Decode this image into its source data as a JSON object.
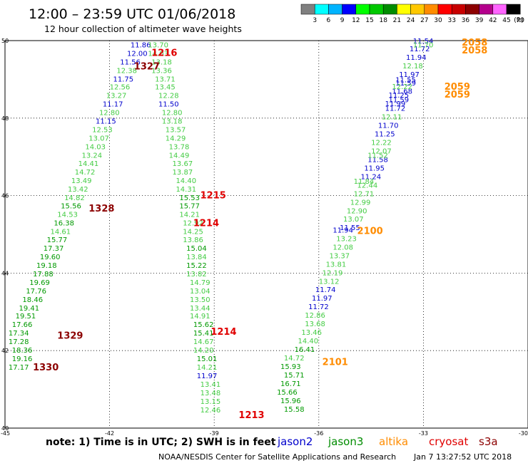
{
  "header": {
    "title": "12:00 – 23:59 UTC 01/06/2018",
    "subtitle": "12 hour collection of altimeter wave heights"
  },
  "colorbar": {
    "ticks": [
      "3",
      "6",
      "9",
      "12",
      "15",
      "18",
      "21",
      "24",
      "27",
      "30",
      "33",
      "36",
      "39",
      "42",
      "45",
      "70"
    ],
    "unit": "(ft)",
    "colors": [
      "#808080",
      "#00ffff",
      "#00b4ff",
      "#0000ff",
      "#00ff00",
      "#00c800",
      "#008c00",
      "#ffff00",
      "#ffc800",
      "#ff8c00",
      "#ff0000",
      "#c80000",
      "#8c0000",
      "#b4008c",
      "#ff64ff",
      "#000000"
    ]
  },
  "footer": {
    "note": "note: 1) Time is in UTC; 2) SWH is in feet",
    "legend": [
      {
        "name": "jason2",
        "color": "#0000cc"
      },
      {
        "name": "jason3",
        "color": "#008c00"
      },
      {
        "name": "altika",
        "color": "#ff8c00"
      },
      {
        "name": "cryosat",
        "color": "#e00000"
      },
      {
        "name": "s3a",
        "color": "#8c0000"
      }
    ],
    "credit": "NOAA/NESDIS Center for Satellite Applications and Research",
    "timestamp": "Jan  7 13:27:52 UTC 2018"
  },
  "chart_data": {
    "type": "scatter",
    "xlim": [
      -45,
      -30
    ],
    "ylim": [
      40,
      50
    ],
    "xticks": [
      -45,
      -42,
      -39,
      -36,
      -33,
      -30
    ],
    "xtick_labels": [
      "-45",
      "-42",
      "-39",
      "-36",
      "-33",
      "-30"
    ],
    "yticks": [
      40,
      42,
      44,
      46,
      48,
      50
    ],
    "ytick_labels": [
      "40",
      "42",
      "44",
      "46",
      "48",
      "50"
    ],
    "grid": true,
    "colors": {
      "lg": "#44cc44",
      "dg": "#009900",
      "bl": "#0000cc",
      "or": "#ff8c00",
      "rd": "#e00000",
      "dr": "#8c0000"
    },
    "points": [
      {
        "x": -41.4,
        "y": 49.9,
        "t": "11.86",
        "c": "bl"
      },
      {
        "x": -41.5,
        "y": 49.68,
        "t": "12.00",
        "c": "bl"
      },
      {
        "x": -41.7,
        "y": 49.46,
        "t": "11.56",
        "c": "bl"
      },
      {
        "x": -41.8,
        "y": 49.24,
        "t": "12.38",
        "c": "lg"
      },
      {
        "x": -41.9,
        "y": 49.02,
        "t": "11.75",
        "c": "bl"
      },
      {
        "x": -42.0,
        "y": 48.81,
        "t": "12.56",
        "c": "lg"
      },
      {
        "x": -42.1,
        "y": 48.59,
        "t": "13.27",
        "c": "lg"
      },
      {
        "x": -42.2,
        "y": 48.37,
        "t": "11.17",
        "c": "bl"
      },
      {
        "x": -42.3,
        "y": 48.15,
        "t": "12.80",
        "c": "lg"
      },
      {
        "x": -42.4,
        "y": 47.93,
        "t": "11.15",
        "c": "bl"
      },
      {
        "x": -42.5,
        "y": 47.71,
        "t": "12.53",
        "c": "lg"
      },
      {
        "x": -42.6,
        "y": 47.49,
        "t": "13.07",
        "c": "lg"
      },
      {
        "x": -42.7,
        "y": 47.27,
        "t": "14.03",
        "c": "lg"
      },
      {
        "x": -42.8,
        "y": 47.05,
        "t": "13.24",
        "c": "lg"
      },
      {
        "x": -42.9,
        "y": 46.84,
        "t": "14.41",
        "c": "lg"
      },
      {
        "x": -43.0,
        "y": 46.62,
        "t": "14.72",
        "c": "lg"
      },
      {
        "x": -43.1,
        "y": 46.4,
        "t": "13.49",
        "c": "lg"
      },
      {
        "x": -43.2,
        "y": 46.18,
        "t": "13.42",
        "c": "lg"
      },
      {
        "x": -43.3,
        "y": 45.96,
        "t": "14.82",
        "c": "lg"
      },
      {
        "x": -43.4,
        "y": 45.74,
        "t": "15.56",
        "c": "dg"
      },
      {
        "x": -43.5,
        "y": 45.52,
        "t": "14.53",
        "c": "lg"
      },
      {
        "x": -43.6,
        "y": 45.3,
        "t": "16.38",
        "c": "dg"
      },
      {
        "x": -43.7,
        "y": 45.08,
        "t": "14.61",
        "c": "lg"
      },
      {
        "x": -43.8,
        "y": 44.87,
        "t": "15.77",
        "c": "dg"
      },
      {
        "x": -43.9,
        "y": 44.65,
        "t": "17.37",
        "c": "dg"
      },
      {
        "x": -44.0,
        "y": 44.43,
        "t": "19.60",
        "c": "dg"
      },
      {
        "x": -44.1,
        "y": 44.21,
        "t": "19.18",
        "c": "dg"
      },
      {
        "x": -44.2,
        "y": 43.99,
        "t": "17.88",
        "c": "dg"
      },
      {
        "x": -44.3,
        "y": 43.77,
        "t": "19.69",
        "c": "dg"
      },
      {
        "x": -44.4,
        "y": 43.55,
        "t": "17.76",
        "c": "dg"
      },
      {
        "x": -44.5,
        "y": 43.33,
        "t": "18.46",
        "c": "dg"
      },
      {
        "x": -44.6,
        "y": 43.11,
        "t": "19.41",
        "c": "dg"
      },
      {
        "x": -44.7,
        "y": 42.9,
        "t": "19.51",
        "c": "dg"
      },
      {
        "x": -44.8,
        "y": 42.68,
        "t": "17.66",
        "c": "dg"
      },
      {
        "x": -44.9,
        "y": 42.46,
        "t": "17.34",
        "c": "dg"
      },
      {
        "x": -44.9,
        "y": 42.24,
        "t": "17.28",
        "c": "dg"
      },
      {
        "x": -44.8,
        "y": 42.02,
        "t": "18.36",
        "c": "dg"
      },
      {
        "x": -44.8,
        "y": 41.8,
        "t": "19.16",
        "c": "dg"
      },
      {
        "x": -44.9,
        "y": 41.58,
        "t": "17.17",
        "c": "dg"
      },
      {
        "x": -40.9,
        "y": 49.9,
        "t": "13.70",
        "c": "lg"
      },
      {
        "x": -40.9,
        "y": 49.68,
        "t": "14.03",
        "c": "lg"
      },
      {
        "x": -40.8,
        "y": 49.46,
        "t": "13.18",
        "c": "lg"
      },
      {
        "x": -40.8,
        "y": 49.24,
        "t": "13.36",
        "c": "lg"
      },
      {
        "x": -40.7,
        "y": 49.02,
        "t": "13.71",
        "c": "lg"
      },
      {
        "x": -40.7,
        "y": 48.81,
        "t": "13.45",
        "c": "lg"
      },
      {
        "x": -40.6,
        "y": 48.59,
        "t": "12.28",
        "c": "lg"
      },
      {
        "x": -40.6,
        "y": 48.37,
        "t": "11.50",
        "c": "bl"
      },
      {
        "x": -40.5,
        "y": 48.15,
        "t": "12.80",
        "c": "lg"
      },
      {
        "x": -40.5,
        "y": 47.93,
        "t": "13.18",
        "c": "lg"
      },
      {
        "x": -40.4,
        "y": 47.71,
        "t": "13.57",
        "c": "lg"
      },
      {
        "x": -40.4,
        "y": 47.49,
        "t": "14.29",
        "c": "lg"
      },
      {
        "x": -40.3,
        "y": 47.27,
        "t": "13.78",
        "c": "lg"
      },
      {
        "x": -40.3,
        "y": 47.05,
        "t": "14.49",
        "c": "lg"
      },
      {
        "x": -40.2,
        "y": 46.84,
        "t": "13.67",
        "c": "lg"
      },
      {
        "x": -40.2,
        "y": 46.62,
        "t": "13.87",
        "c": "lg"
      },
      {
        "x": -40.1,
        "y": 46.4,
        "t": "14.40",
        "c": "lg"
      },
      {
        "x": -40.1,
        "y": 46.18,
        "t": "14.31",
        "c": "lg"
      },
      {
        "x": -40.0,
        "y": 45.96,
        "t": "15.53",
        "c": "dg"
      },
      {
        "x": -40.0,
        "y": 45.74,
        "t": "15.77",
        "c": "dg"
      },
      {
        "x": -40.0,
        "y": 45.52,
        "t": "14.21",
        "c": "lg"
      },
      {
        "x": -39.9,
        "y": 45.3,
        "t": "12.92",
        "c": "lg"
      },
      {
        "x": -39.9,
        "y": 45.08,
        "t": "14.25",
        "c": "lg"
      },
      {
        "x": -39.9,
        "y": 44.87,
        "t": "13.86",
        "c": "lg"
      },
      {
        "x": -39.8,
        "y": 44.65,
        "t": "15.04",
        "c": "dg"
      },
      {
        "x": -39.8,
        "y": 44.43,
        "t": "13.84",
        "c": "lg"
      },
      {
        "x": -39.8,
        "y": 44.21,
        "t": "15.22",
        "c": "dg"
      },
      {
        "x": -39.8,
        "y": 43.99,
        "t": "13.82",
        "c": "lg"
      },
      {
        "x": -39.7,
        "y": 43.77,
        "t": "14.79",
        "c": "lg"
      },
      {
        "x": -39.7,
        "y": 43.55,
        "t": "13.04",
        "c": "lg"
      },
      {
        "x": -39.7,
        "y": 43.33,
        "t": "13.50",
        "c": "lg"
      },
      {
        "x": -39.7,
        "y": 43.11,
        "t": "13.44",
        "c": "lg"
      },
      {
        "x": -39.7,
        "y": 42.9,
        "t": "14.91",
        "c": "lg"
      },
      {
        "x": -39.6,
        "y": 42.68,
        "t": "15.62",
        "c": "dg"
      },
      {
        "x": -39.6,
        "y": 42.46,
        "t": "15.41",
        "c": "dg"
      },
      {
        "x": -39.6,
        "y": 42.24,
        "t": "14.67",
        "c": "lg"
      },
      {
        "x": -39.6,
        "y": 42.02,
        "t": "14.20",
        "c": "lg"
      },
      {
        "x": -39.5,
        "y": 41.8,
        "t": "15.01",
        "c": "dg"
      },
      {
        "x": -39.5,
        "y": 41.58,
        "t": "14.21",
        "c": "lg"
      },
      {
        "x": -39.5,
        "y": 41.36,
        "t": "11.97",
        "c": "bl"
      },
      {
        "x": -39.4,
        "y": 41.14,
        "t": "13.41",
        "c": "lg"
      },
      {
        "x": -39.4,
        "y": 40.92,
        "t": "13.48",
        "c": "lg"
      },
      {
        "x": -39.4,
        "y": 40.7,
        "t": "13.15",
        "c": "lg"
      },
      {
        "x": -39.4,
        "y": 40.48,
        "t": "12.46",
        "c": "lg"
      },
      {
        "x": -37.0,
        "y": 40.5,
        "t": "15.58",
        "c": "dg"
      },
      {
        "x": -37.1,
        "y": 40.72,
        "t": "15.96",
        "c": "dg"
      },
      {
        "x": -37.2,
        "y": 40.94,
        "t": "15.66",
        "c": "dg"
      },
      {
        "x": -37.1,
        "y": 41.16,
        "t": "16.71",
        "c": "dg"
      },
      {
        "x": -37.0,
        "y": 41.38,
        "t": "15.71",
        "c": "dg"
      },
      {
        "x": -37.1,
        "y": 41.6,
        "t": "15.93",
        "c": "dg"
      },
      {
        "x": -37.0,
        "y": 41.82,
        "t": "14.72",
        "c": "lg"
      },
      {
        "x": -36.7,
        "y": 42.04,
        "t": "16.41",
        "c": "dg"
      },
      {
        "x": -36.6,
        "y": 42.26,
        "t": "14.40",
        "c": "lg"
      },
      {
        "x": -36.5,
        "y": 42.48,
        "t": "13.46",
        "c": "lg"
      },
      {
        "x": -36.4,
        "y": 42.7,
        "t": "13.68",
        "c": "lg"
      },
      {
        "x": -36.4,
        "y": 42.92,
        "t": "12.86",
        "c": "lg"
      },
      {
        "x": -36.3,
        "y": 43.14,
        "t": "11.72",
        "c": "bl"
      },
      {
        "x": -36.2,
        "y": 43.36,
        "t": "11.97",
        "c": "bl"
      },
      {
        "x": -36.1,
        "y": 43.58,
        "t": "11.74",
        "c": "bl"
      },
      {
        "x": -36.0,
        "y": 43.8,
        "t": "13.12",
        "c": "lg"
      },
      {
        "x": -35.9,
        "y": 44.02,
        "t": "12.19",
        "c": "lg"
      },
      {
        "x": -35.8,
        "y": 44.24,
        "t": "13.81",
        "c": "lg"
      },
      {
        "x": -35.7,
        "y": 44.46,
        "t": "13.37",
        "c": "lg"
      },
      {
        "x": -35.6,
        "y": 44.68,
        "t": "12.08",
        "c": "lg"
      },
      {
        "x": -35.5,
        "y": 44.9,
        "t": "13.23",
        "c": "lg"
      },
      {
        "x": -35.6,
        "y": 45.12,
        "t": "11.94",
        "c": "bl"
      },
      {
        "x": -35.4,
        "y": 45.18,
        "t": "11.55",
        "c": "bl"
      },
      {
        "x": -35.3,
        "y": 45.4,
        "t": "13.07",
        "c": "lg"
      },
      {
        "x": -35.2,
        "y": 45.62,
        "t": "12.90",
        "c": "lg"
      },
      {
        "x": -35.1,
        "y": 45.84,
        "t": "12.99",
        "c": "lg"
      },
      {
        "x": -35.0,
        "y": 46.06,
        "t": "12.71",
        "c": "lg"
      },
      {
        "x": -34.9,
        "y": 46.28,
        "t": "12.44",
        "c": "lg"
      },
      {
        "x": -34.8,
        "y": 46.5,
        "t": "11.24",
        "c": "bl"
      },
      {
        "x": -34.7,
        "y": 46.72,
        "t": "11.95",
        "c": "bl"
      },
      {
        "x": -34.6,
        "y": 46.94,
        "t": "11.58",
        "c": "bl"
      },
      {
        "x": -34.5,
        "y": 47.16,
        "t": "12.07",
        "c": "lg"
      },
      {
        "x": -34.5,
        "y": 47.38,
        "t": "12.22",
        "c": "lg"
      },
      {
        "x": -34.4,
        "y": 47.6,
        "t": "11.25",
        "c": "bl"
      },
      {
        "x": -34.3,
        "y": 47.82,
        "t": "11.70",
        "c": "bl"
      },
      {
        "x": -34.2,
        "y": 48.04,
        "t": "12.11",
        "c": "lg"
      },
      {
        "x": -34.1,
        "y": 48.26,
        "t": "11.72",
        "c": "bl"
      },
      {
        "x": -34.0,
        "y": 48.48,
        "t": "11.59",
        "c": "bl"
      },
      {
        "x": -33.9,
        "y": 48.7,
        "t": "11.68",
        "c": "bl"
      },
      {
        "x": -33.8,
        "y": 48.92,
        "t": "11.59",
        "c": "bl"
      },
      {
        "x": -33.7,
        "y": 49.14,
        "t": "11.97",
        "c": "bl"
      },
      {
        "x": -33.6,
        "y": 49.36,
        "t": "12.18",
        "c": "lg"
      },
      {
        "x": -33.5,
        "y": 49.58,
        "t": "11.94",
        "c": "bl"
      },
      {
        "x": -33.4,
        "y": 49.8,
        "t": "11.72",
        "c": "bl"
      },
      {
        "x": -33.3,
        "y": 50.0,
        "t": "11.54",
        "c": "bl"
      },
      {
        "x": -33.3,
        "y": 49.9,
        "t": "11.70",
        "c": "lg"
      },
      {
        "x": -33.9,
        "y": 48.82,
        "t": "12.22",
        "c": "lg"
      },
      {
        "x": -33.8,
        "y": 49.0,
        "t": "11.55",
        "c": "bl"
      },
      {
        "x": -34.1,
        "y": 48.38,
        "t": "11.99",
        "c": "bl"
      },
      {
        "x": -34.0,
        "y": 48.6,
        "t": "11.25",
        "c": "bl"
      },
      {
        "x": -34.6,
        "y": 47.05,
        "t": "11.52",
        "c": "lg"
      },
      {
        "x": -35.0,
        "y": 46.38,
        "t": "11.84",
        "c": "lg"
      }
    ],
    "annotations": [
      {
        "x": -40.8,
        "y": 49.7,
        "t": "1216",
        "c": "rd"
      },
      {
        "x": -41.3,
        "y": 49.35,
        "t": "1327",
        "c": "dr"
      },
      {
        "x": -39.4,
        "y": 46.02,
        "t": "1215",
        "c": "rd"
      },
      {
        "x": -42.6,
        "y": 45.68,
        "t": "1328",
        "c": "dr"
      },
      {
        "x": -39.6,
        "y": 45.3,
        "t": "1214",
        "c": "rd"
      },
      {
        "x": -39.1,
        "y": 42.5,
        "t": "1214",
        "c": "rd"
      },
      {
        "x": -43.5,
        "y": 42.4,
        "t": "1329",
        "c": "dr"
      },
      {
        "x": -44.2,
        "y": 41.58,
        "t": "1330",
        "c": "dr"
      },
      {
        "x": -38.3,
        "y": 40.35,
        "t": "1213",
        "c": "rd"
      },
      {
        "x": -35.9,
        "y": 41.72,
        "t": "2101",
        "c": "or"
      },
      {
        "x": -34.9,
        "y": 45.1,
        "t": "2100",
        "c": "or"
      },
      {
        "x": -32.4,
        "y": 48.62,
        "t": "2059",
        "c": "or"
      },
      {
        "x": -32.4,
        "y": 48.82,
        "t": "2059",
        "c": "or"
      },
      {
        "x": -31.9,
        "y": 49.76,
        "t": "2058",
        "c": "or"
      },
      {
        "x": -31.9,
        "y": 49.96,
        "t": "2058",
        "c": "or"
      }
    ]
  }
}
